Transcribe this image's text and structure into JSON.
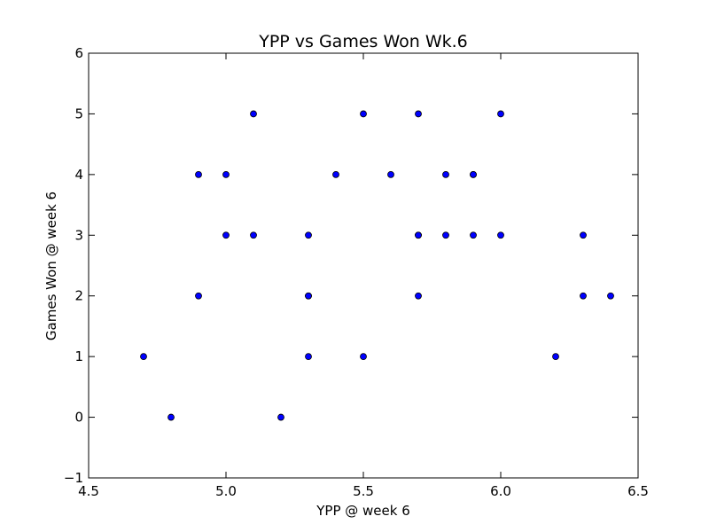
{
  "chart_data": {
    "type": "scatter",
    "title": "YPP vs Games Won Wk.6",
    "xlabel": "YPP @ week 6",
    "ylabel": "Games Won @ week 6",
    "xlim": [
      4.5,
      6.5
    ],
    "ylim": [
      -1,
      6
    ],
    "xticks": [
      4.5,
      5.0,
      5.5,
      6.0,
      6.5
    ],
    "xtick_labels": [
      "4.5",
      "5.0",
      "5.5",
      "6.0",
      "6.5"
    ],
    "yticks": [
      -1,
      0,
      1,
      2,
      3,
      4,
      5,
      6
    ],
    "ytick_labels": [
      "−1",
      "0",
      "1",
      "2",
      "3",
      "4",
      "5",
      "6"
    ],
    "grid": false,
    "marker_color": "#0000ff",
    "points": [
      {
        "x": 4.7,
        "y": 1
      },
      {
        "x": 4.8,
        "y": 0
      },
      {
        "x": 4.9,
        "y": 4
      },
      {
        "x": 4.9,
        "y": 2
      },
      {
        "x": 5.0,
        "y": 4
      },
      {
        "x": 5.0,
        "y": 3
      },
      {
        "x": 5.1,
        "y": 5
      },
      {
        "x": 5.1,
        "y": 3
      },
      {
        "x": 5.2,
        "y": 0
      },
      {
        "x": 5.3,
        "y": 3
      },
      {
        "x": 5.3,
        "y": 2
      },
      {
        "x": 5.3,
        "y": 2
      },
      {
        "x": 5.3,
        "y": 1
      },
      {
        "x": 5.4,
        "y": 4
      },
      {
        "x": 5.5,
        "y": 5
      },
      {
        "x": 5.5,
        "y": 1
      },
      {
        "x": 5.6,
        "y": 4
      },
      {
        "x": 5.7,
        "y": 5
      },
      {
        "x": 5.7,
        "y": 3
      },
      {
        "x": 5.7,
        "y": 3
      },
      {
        "x": 5.7,
        "y": 2
      },
      {
        "x": 5.8,
        "y": 4
      },
      {
        "x": 5.8,
        "y": 3
      },
      {
        "x": 5.9,
        "y": 4
      },
      {
        "x": 5.9,
        "y": 4
      },
      {
        "x": 5.9,
        "y": 3
      },
      {
        "x": 6.0,
        "y": 5
      },
      {
        "x": 6.0,
        "y": 3
      },
      {
        "x": 6.2,
        "y": 1
      },
      {
        "x": 6.3,
        "y": 3
      },
      {
        "x": 6.3,
        "y": 2
      },
      {
        "x": 6.4,
        "y": 2
      }
    ]
  }
}
